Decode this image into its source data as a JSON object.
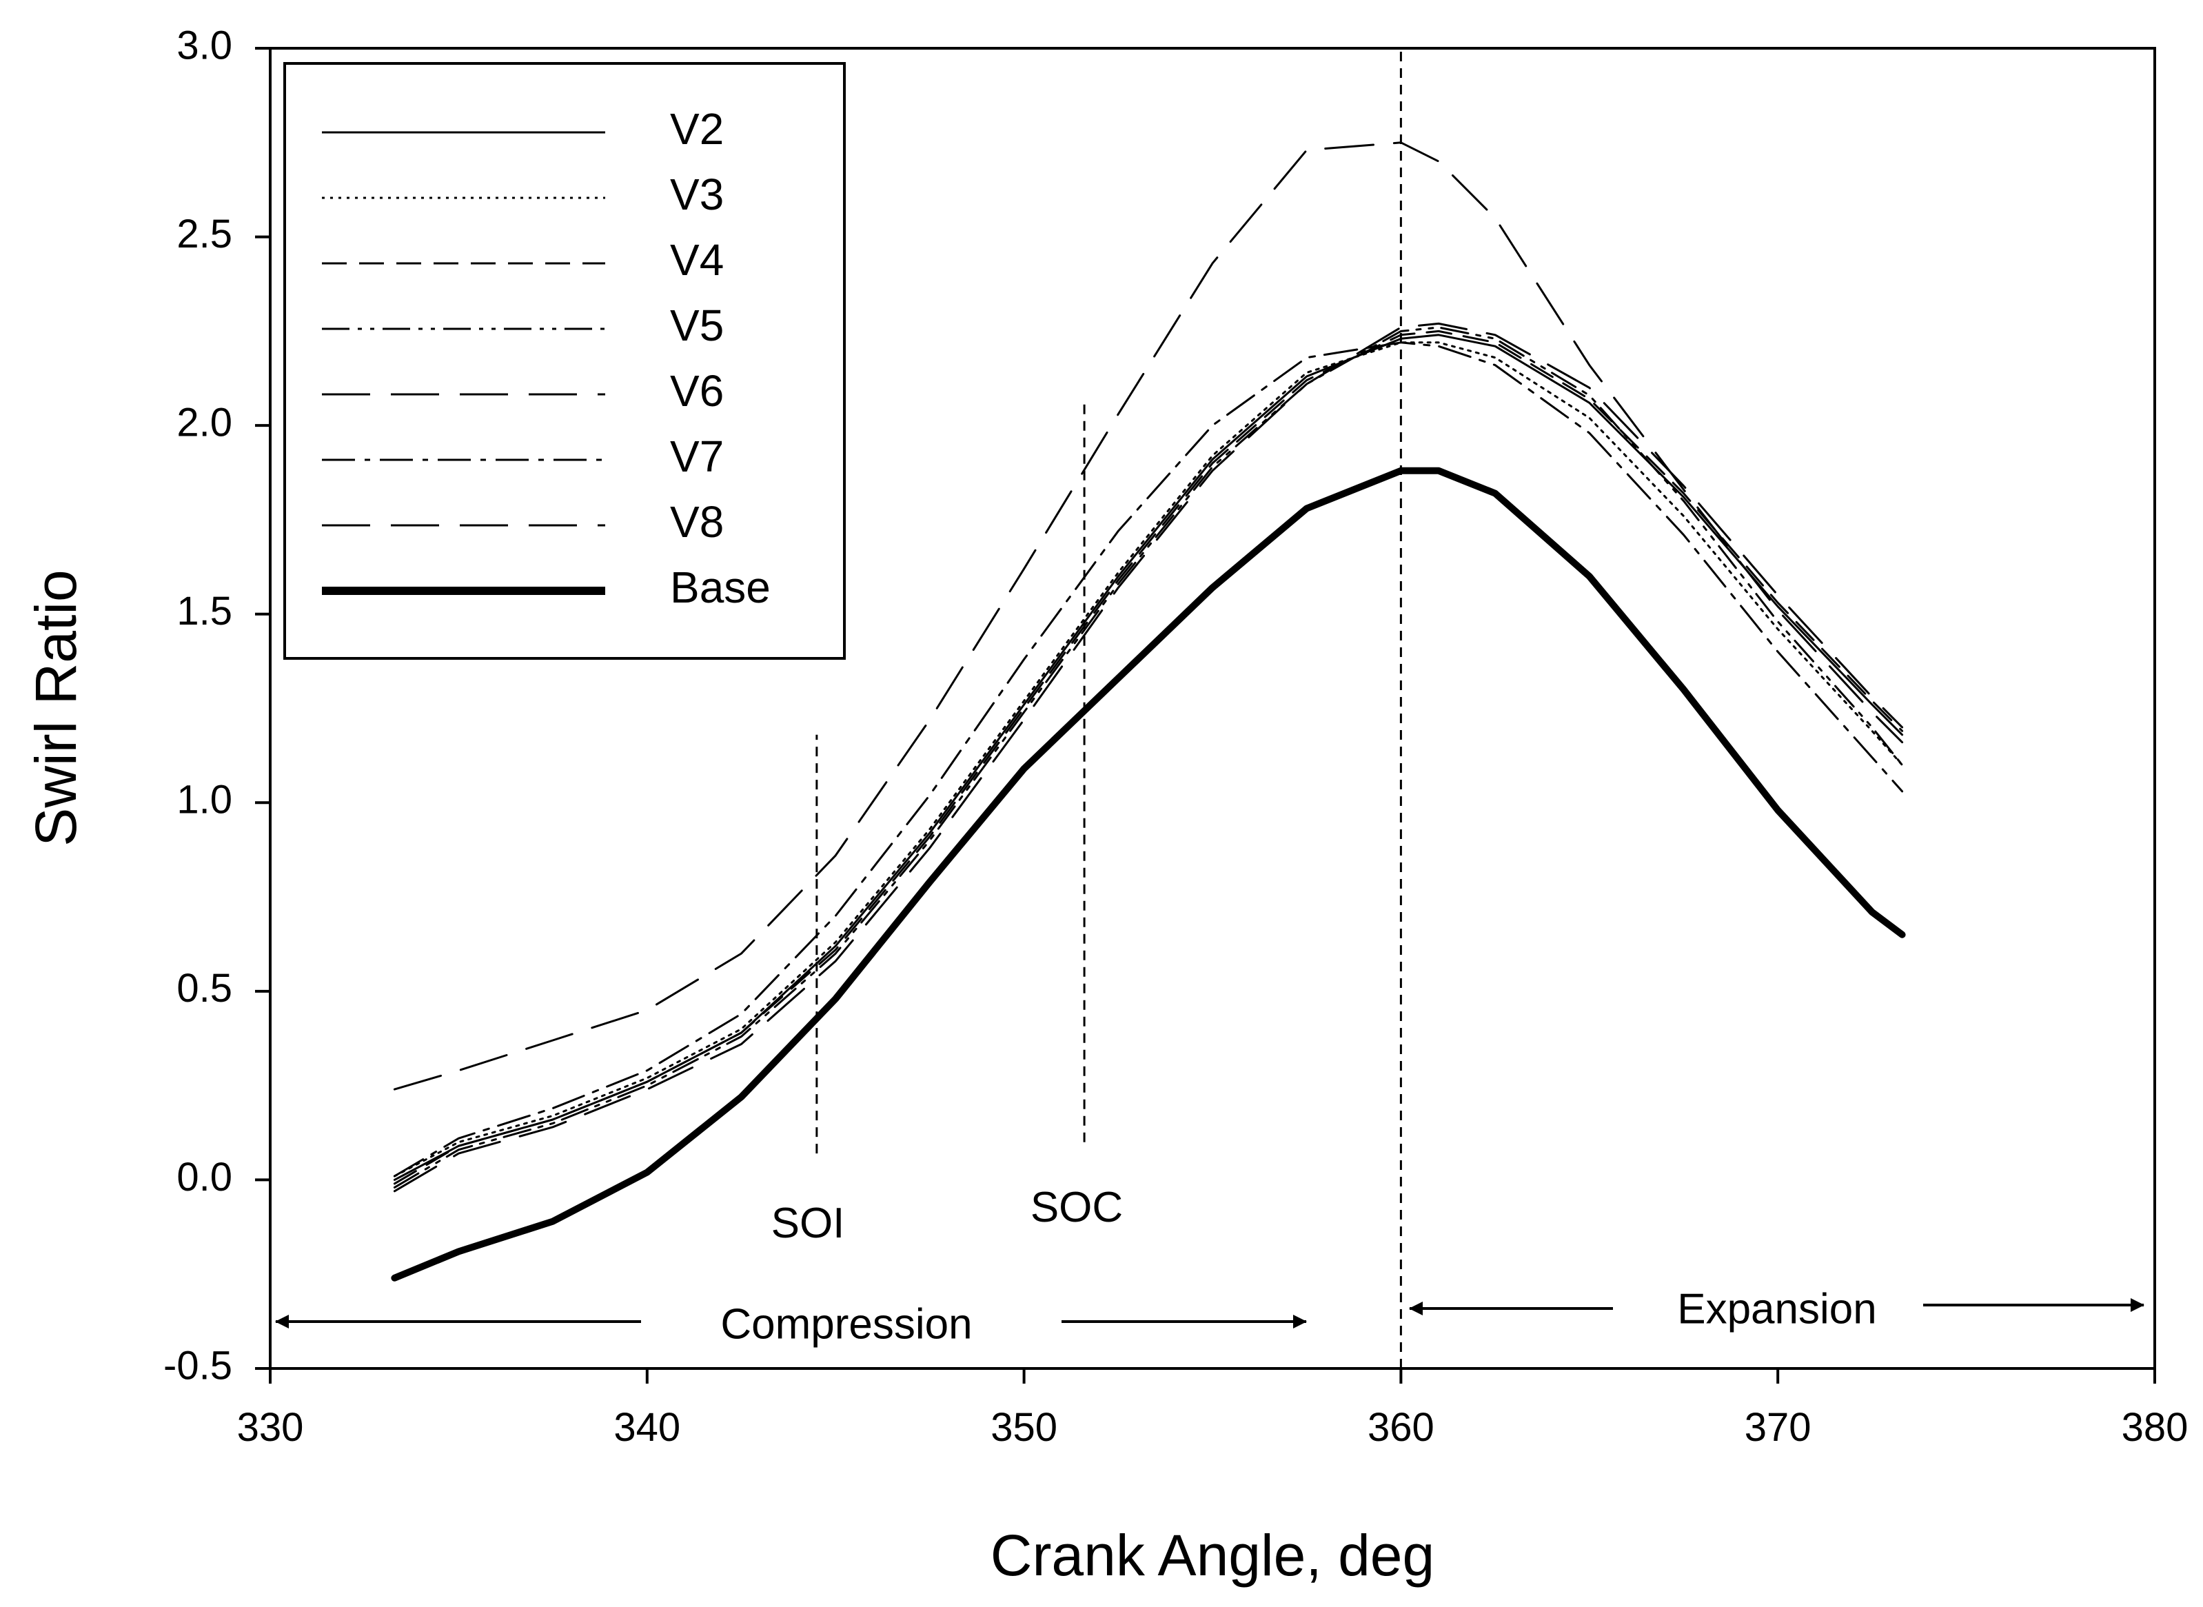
{
  "chart_data": {
    "type": "line",
    "title": "",
    "xlabel": "Crank Angle, deg",
    "ylabel": "Swirl Ratio",
    "xlim": [
      330,
      380
    ],
    "ylim": [
      -0.5,
      3.0
    ],
    "xticks": [
      330,
      340,
      350,
      360,
      370,
      380
    ],
    "xtick_labels": [
      "330",
      "340",
      "350",
      "360",
      "370",
      "380"
    ],
    "yticks": [
      -0.5,
      0.0,
      0.5,
      1.0,
      1.5,
      2.0,
      2.5,
      3.0
    ],
    "ytick_labels": [
      "-0.5",
      "0.0",
      "0.5",
      "1.0",
      "1.5",
      "2.0",
      "2.5",
      "3.0"
    ],
    "grid": false,
    "legend_position": "top-left",
    "x": [
      333.3,
      335,
      337.5,
      340,
      342.5,
      345,
      347.5,
      350,
      352.5,
      355,
      357.5,
      360,
      361,
      362.5,
      365,
      367.5,
      370,
      372.5,
      373.3
    ],
    "series": [
      {
        "name": "V2",
        "style": "solid",
        "values": [
          0.0,
          0.09,
          0.16,
          0.26,
          0.39,
          0.62,
          0.92,
          1.26,
          1.6,
          1.91,
          2.13,
          2.23,
          2.24,
          2.21,
          2.06,
          1.81,
          1.52,
          1.26,
          1.18
        ]
      },
      {
        "name": "V3",
        "style": "dotted",
        "values": [
          0.01,
          0.1,
          0.17,
          0.27,
          0.4,
          0.63,
          0.93,
          1.27,
          1.61,
          1.92,
          2.14,
          2.22,
          2.22,
          2.18,
          2.02,
          1.76,
          1.46,
          1.19,
          1.1
        ]
      },
      {
        "name": "V4",
        "style": "dashed",
        "values": [
          -0.01,
          0.09,
          0.16,
          0.26,
          0.39,
          0.61,
          0.91,
          1.25,
          1.59,
          1.9,
          2.12,
          2.24,
          2.25,
          2.22,
          2.07,
          1.82,
          1.53,
          1.27,
          1.19
        ]
      },
      {
        "name": "V5",
        "style": "dash-dot-dot",
        "values": [
          -0.02,
          0.08,
          0.15,
          0.25,
          0.38,
          0.6,
          0.9,
          1.24,
          1.58,
          1.89,
          2.11,
          2.25,
          2.26,
          2.23,
          2.08,
          1.8,
          1.48,
          1.2,
          1.1
        ]
      },
      {
        "name": "V6",
        "style": "long-dash",
        "values": [
          -0.03,
          0.07,
          0.14,
          0.24,
          0.36,
          0.58,
          0.88,
          1.22,
          1.57,
          1.88,
          2.11,
          2.26,
          2.27,
          2.24,
          2.1,
          1.84,
          1.55,
          1.28,
          1.2
        ]
      },
      {
        "name": "V7",
        "style": "dash-dot",
        "values": [
          0.01,
          0.11,
          0.19,
          0.29,
          0.44,
          0.7,
          1.02,
          1.38,
          1.72,
          2.0,
          2.18,
          2.22,
          2.21,
          2.16,
          1.98,
          1.71,
          1.4,
          1.12,
          1.03
        ]
      },
      {
        "name": "V8",
        "style": "long-dash",
        "values": [
          0.24,
          0.29,
          0.37,
          0.45,
          0.6,
          0.86,
          1.22,
          1.62,
          2.03,
          2.43,
          2.73,
          2.75,
          2.7,
          2.55,
          2.16,
          1.83,
          1.51,
          1.24,
          1.16
        ]
      },
      {
        "name": "Base",
        "style": "thick-solid",
        "values": [
          -0.26,
          -0.19,
          -0.11,
          0.02,
          0.22,
          0.48,
          0.79,
          1.09,
          1.33,
          1.57,
          1.78,
          1.88,
          1.88,
          1.82,
          1.6,
          1.3,
          0.98,
          0.71,
          0.65
        ]
      }
    ],
    "reference_lines": [
      {
        "label": "SOI",
        "x": 344.5,
        "ymin": 0.07,
        "ymax": 1.18,
        "style": "dashed"
      },
      {
        "label": "SOC",
        "x": 351.6,
        "ymin": 0.1,
        "ymax": 2.07,
        "style": "dashed"
      },
      {
        "label": "",
        "x": 360,
        "ymin": -0.5,
        "ymax": 3.0,
        "style": "dashed"
      }
    ],
    "annotations": [
      {
        "text": "Compression",
        "type": "range-arrow",
        "from": 330,
        "to": 357.5,
        "y": -0.38
      },
      {
        "text": "Expansion",
        "type": "range-arrow",
        "from": 360,
        "to": 380,
        "y": -0.35
      }
    ]
  }
}
